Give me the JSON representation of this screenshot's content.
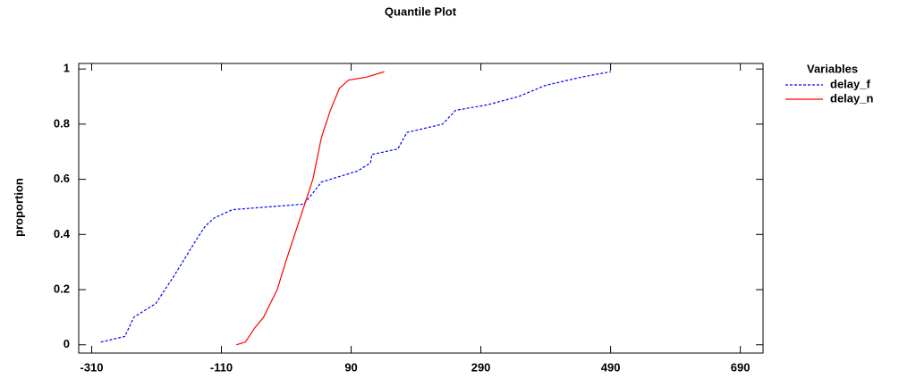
{
  "chart_data": {
    "type": "line",
    "title": "Quantile Plot",
    "y_label": "proportion",
    "legend_title": "Variables",
    "legend": "right",
    "xlim": [
      -330,
      725
    ],
    "ylim": [
      -0.03,
      1.02
    ],
    "xticks": [
      -310,
      -110,
      90,
      290,
      490,
      690
    ],
    "yticks": [
      0,
      0.2,
      0.4,
      0.6,
      0.8,
      1
    ],
    "series": [
      {
        "name": "delay_f",
        "color": "#0000ff",
        "dashed": true,
        "x": [
          -296,
          -259,
          -245,
          -211,
          -197,
          -183,
          -162,
          -149,
          -135,
          -121,
          -93,
          -38,
          17,
          31,
          44,
          100,
          120,
          122,
          162,
          176,
          231,
          251,
          300,
          348,
          389,
          444,
          490
        ],
        "values": [
          0.01,
          0.03,
          0.1,
          0.15,
          0.2,
          0.25,
          0.33,
          0.38,
          0.43,
          0.46,
          0.49,
          0.5,
          0.51,
          0.55,
          0.59,
          0.63,
          0.66,
          0.69,
          0.71,
          0.77,
          0.8,
          0.85,
          0.87,
          0.9,
          0.94,
          0.97,
          0.99
        ]
      },
      {
        "name": "delay_n",
        "color": "#ff0000",
        "dashed": false,
        "x": [
          -87,
          -73,
          -59,
          -45,
          -24,
          -11,
          3,
          17,
          31,
          44,
          58,
          72,
          86,
          113,
          141
        ],
        "values": [
          0.0,
          0.01,
          0.06,
          0.1,
          0.2,
          0.3,
          0.4,
          0.5,
          0.6,
          0.75,
          0.85,
          0.93,
          0.96,
          0.97,
          0.99
        ]
      }
    ]
  }
}
